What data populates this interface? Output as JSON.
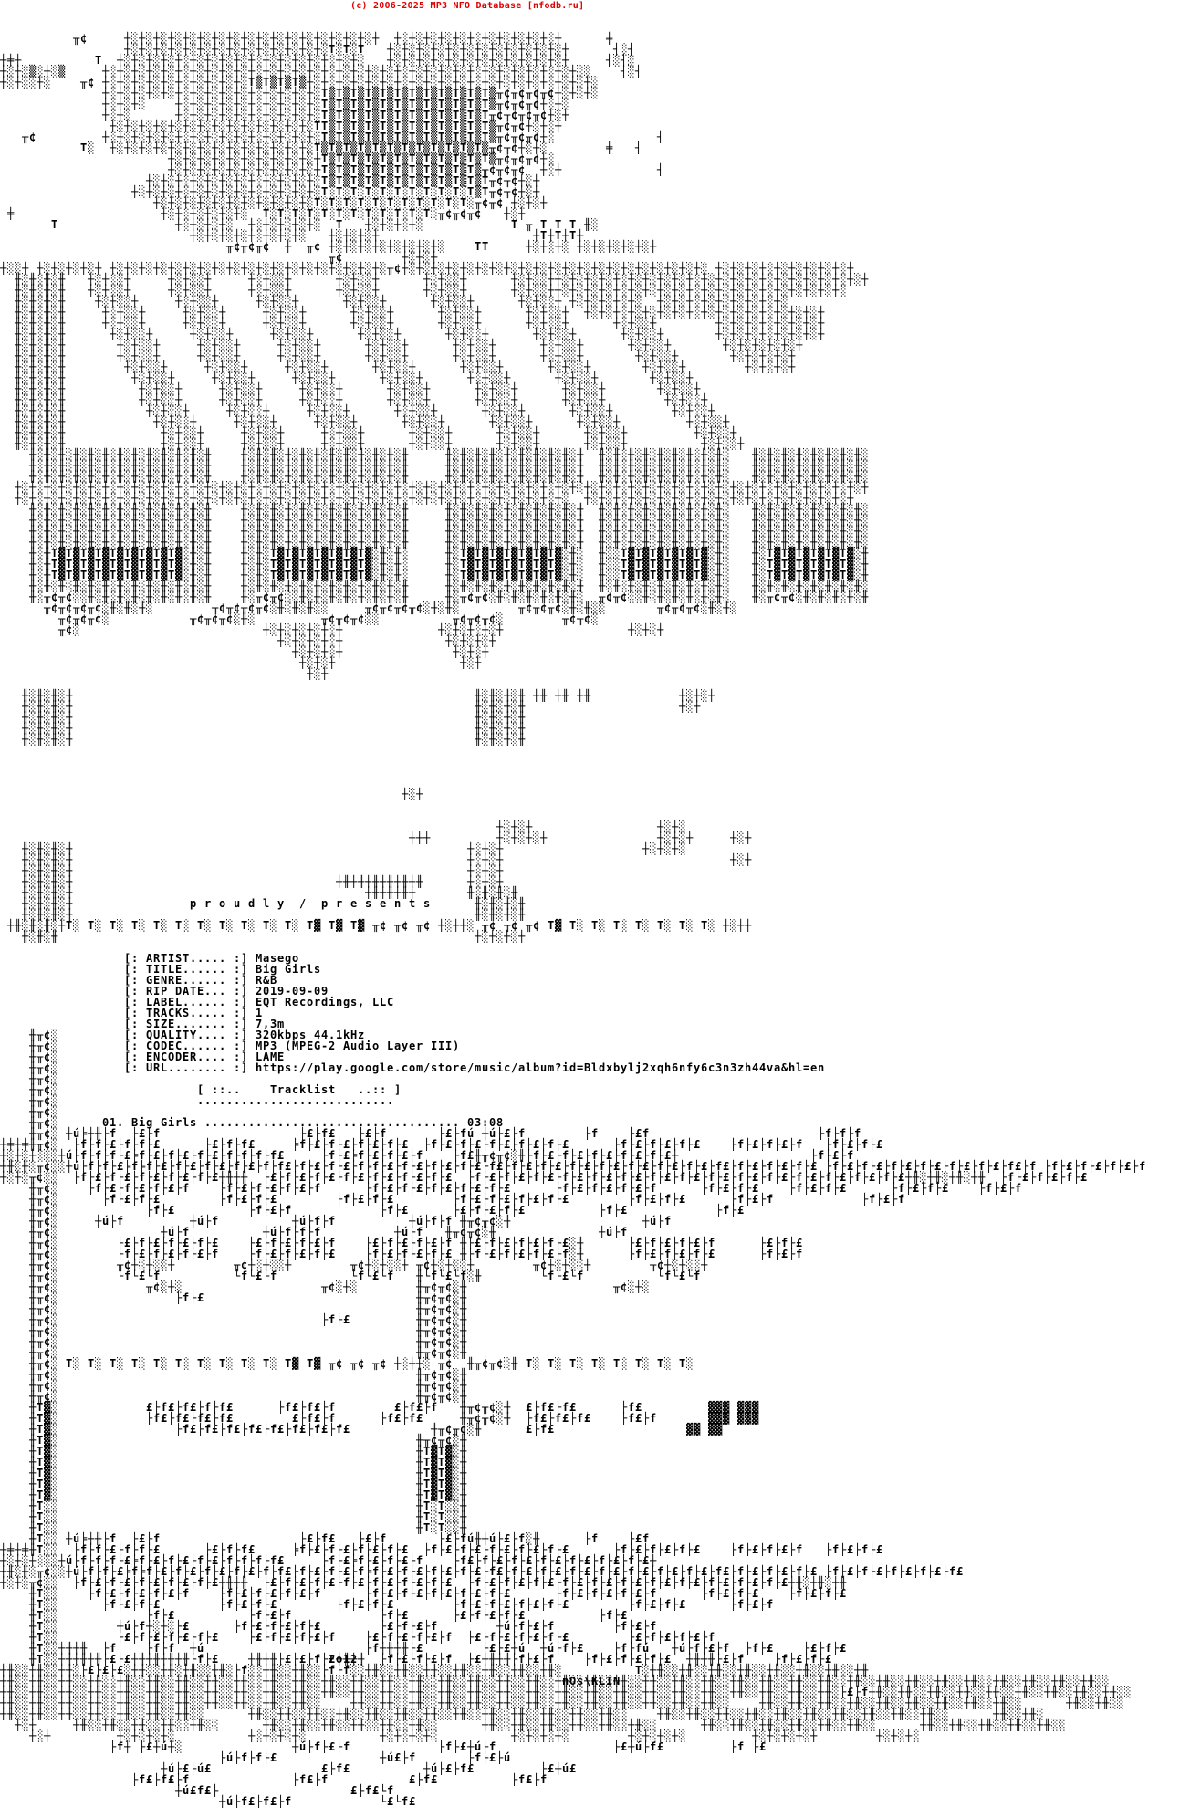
{
  "site_header": {
    "text": "(c) 2006-2025 MP3 NFO Database [nfodb.ru]",
    "color": "#e00000"
  },
  "banner": {
    "slogan": "p r o u d l y  /  p r e s e n t s"
  },
  "release": {
    "artist": "Masego",
    "title": "Big Girls",
    "genre": "R&B",
    "rip_date": "2019-09-09",
    "label": "EQT Recordings, LLC",
    "tracks": "1",
    "size": "7,3m",
    "quality": "320kbps 44.1kHz",
    "codec": "MP3 (MPEG-2 Audio Layer III)",
    "encoder": "LAME",
    "url": "https://play.google.com/store/music/album?id=Bldxbylj2xqh6nfy6c3n3zh44va&hl=en",
    "fields": [
      {
        "key": "artist",
        "label": "[: ARTIST..... :] ",
        "value": "Masego"
      },
      {
        "key": "title",
        "label": "[: TITLE...... :] ",
        "value": "Big Girls"
      },
      {
        "key": "genre",
        "label": "[: GENRE...... :] ",
        "value": "R&B"
      },
      {
        "key": "rip-date",
        "label": "[: RIP DATE... :] ",
        "value": "2019-09-09"
      },
      {
        "key": "label",
        "label": "[: LABEL...... :] ",
        "value": "EQT Recordings, LLC"
      },
      {
        "key": "tracks",
        "label": "[: TRACKS..... :] ",
        "value": "1"
      },
      {
        "key": "size",
        "label": "[: SIZE....... :] ",
        "value": "7,3m"
      },
      {
        "key": "quality",
        "label": "[: QUALITY.... :] ",
        "value": "320kbps 44.1kHz"
      },
      {
        "key": "codec",
        "label": "[: CODEC...... :] ",
        "value": "MP3 (MPEG-2 Audio Layer III)"
      },
      {
        "key": "encoder",
        "label": "[: ENCODER.... :] ",
        "value": "LAME"
      },
      {
        "key": "url",
        "label": "[: URL........ :] ",
        "value": "https://play.google.com/store/music/album?id=Bldxbylj2xqh6nfy6c3n3zh44va&hl=en"
      }
    ]
  },
  "tracklist": {
    "header": "[ ::..    Tracklist   ..:: ]",
    "divider": "...........................",
    "tracks": [
      {
        "num": "01. ",
        "title": "Big Girls ",
        "dots": "................................... ",
        "duration": "03:08"
      }
    ]
  },
  "credits": {
    "year": "2o12",
    "group": "nOs\\KLIN"
  },
  "art": {
    "lines": [
      "",
      "",
      "",
      "          ╥¢     ┼░┼░┼░┼░┼░┼░┼░┼░┼░┼░┼░┼░┼░┼░┼░┼░┼░┼  ┼░┼░┼░┼░┼░┼░┼░┼░┼░┼░┼░┼      ╪",
      "                 ┼░┼░┼░┼░┼░┼░┼░┼░┼░┼░┼░┼░┼░┼░T░T░T   ┼░┼░┼░┼░┼░┼░┼░┼░┼░┼░┼░┼░┼      ┤░┤",
      "┼╪┼          T  ┼░┼░┼░┼░┼░┼░┼░┼░┼░┼░┼░┼░┼░┼░┼░┼░┼░   ┼░┼░┼░┼░┼░┼░┼░┼░┼░┼░┼░┼░┼     ┤░┤░",
      "┼░┼░▒░┼░▒     ┼░┼░┼░┼░┼░┼░┼░┼░┼░┼░┼░┼░┼░┼░┼░┼░┼░┼░┼░┼░┼░┼░┼░┼░┼░┼░┼░┼░┼░┼░┼░┼░┼░░    ┤░┤",
      "┼░┼░░┼░    ╥¢ ┼░┼░┼░┼░┼░┼░┼░┼░┼░┼░T▒T▒T▒T▒┼░┼░┼░┼░┼░┼░┼░┼░┼░┼░┼░┼░┼░┼░┼░┼░┼░┼░┼░┼░",
      "              ┼░┼░┼░┼░┼░┼░┼░┼░┼░┼░┼░┼░┼░┼░┼░T▒T▒T▒T▒T▒T▒T▒T▒T▒T▒T▒T▒╥¢╥¢╥¢╥¢┼░┼░┼░",
      "              ┼░┼░┼░    ┼░┼░┼░┼░┼░┼░┼░┼░┼░┼░T▒T▒T▒T▒T▒T▒T▒T▒T▒T▒T▒T▒╥¢╥¢╥¢┼░┼░",
      "              ┼░┼░      ┼░┼░┼░┼░┼░┼░┼░┼░┼░┼░T▒T▒T▒T▒T▒T▒T▒T▒T▒T▒T▒T╥¢╥¢╥¢╥¢┼░┼",
      "               ┼░┼░┼░┼░┼░┼░┼░┼░┼░┼░┼░┼░┼░┼░TT▒T▒T▒T▒T▒T▒T▒T▒T▒T▒T▒T▒╥¢╥¢┼░┼░┼",
      "   ╥¢         ┼░┼░┼░┼░┼░┼░┼░┼░┼░┼░┼░┼░┼░┼░┼░T▒T▒T▒T▒T▒T▒T▒T▒T▒T▒T▒T▒╥¢╥¢╥¢┼░              ┤",
      "           T░  ┼░┼░┼░┼░┼░┼░┼░┼░┼░┼░┼░┼░┼░┼░T▒T▒T▒T▒T▒T▒T▒T▒T▒T▒T▒T▒╥¢╥¢┼░┼░        ╪   ┤",
      "                       ┼░┼░┼░┼░┼░┼░┼░┼░┼░┼░┼T▒T▒T▒T▒T▒T▒T▒T▒T▒T▒T▒T▒╥¢╥¢╥¢┼░",
      "                       ┼░┼░┼░┼░┼░┼░┼░┼░┼░┼░┼T▒T▒T▒T▒T▒T▒T▒T▒T▒T▒T▒╥¢╥¢╥¢  ┼░┼             ┤",
      "                    ┼░┼░┼░┼░┼░┼░┼░┼░┼░┼░┼░┼░T▒T▒T▒T▒T▒T▒T▒T▒T▒T▒T▒T╥¢╥¢┼░┼",
      "                  ┼░┼░┼░┼░┼░┼░┼░┼░┼░┼░┼░┼░┼░T░T░T░T░T░T░T░T░T░T░T▒T╥¢╥¢┼░┼",
      "                     ┼░┼░┼░┼░┼░┼░┼░┼░┼░┼░┼░T░T░T░T░T░T░T░T░T░T░T░╥¢╥¢ ┼░┼░┼",
      " ╪                    ┼░┼░┼░┼░┼░┼░  T░T░T░T░T░T░T░T░T░T░T░T░╥¢╥¢╥¢   ┼░┼",
      "       T                ┼░┼░┼░┼░  ┼░┼░┼░┼░┼░  T   ┼░┼░┼░┼░            T ╥ T T T ╫░",
      "                          ┼░┼░┼░┼░┼░┼░┼░┼░   ┼░┼░┼░┼                     ┼T┼T┼T┼",
      "                               ╥¢╥¢╥¢  ┼  ╥¢ ┼░┼░┼░┼░┼░┼░┼░┼░    TT     ┼░┼░┼░ ┼░┼░┼░┼░┼░┼",
      "                                             ╥¢        ┼░┼░┼",
      "┼░░┼ ┼░┼░┼░┼░┼ ┼░┼░┼░┼░┼░┼░┼░┼░┼░┼░┼░┼░┼░┼░┼░┼░┼░┼░┼░╥¢┼░┼░┼░┼░┼░┼░┼░┼░┼░┼░┼░┼░┼░┼░┼░┼░┼░┼░┼░┼░┼░ ┼░┼░┼░┼░┼░┼░┼░┼░┼░┼",
      "  ╫░╫░╫░╫   ┼░┼░░┼     ┼░┼░░┼     ┼░┼░░┼      ┼░┼░░┼      ┼░┼░░┼      ┼░┼░░┼┼░┼░┼░┼░┼░┼░┼░┼░┼░┼░┼░┼░┼░┼░┼░┼░┼░┼░┼░┼░┼░┼",
      "  ╫░╫░╫░╫   ┼░┼░░┼     ┼░┼░░┼     ┼░┼░░┼      ┼░┼░░┼      ┼░┼░░┼      ┼░┼░░┼┼░┼░┼░┼░┼░┼░┼░┼░┼░┼░┼░┼░┼░┼░┼░┼░┼░┼░┼░┼░",
      "  ╫░╫░╫░╫    ┼░┼░░┼     ┼░┼░░┼     ┼░┼░░┼      ┼░┼░░┼      ┼░┼░░┼      ┼░┼░░┼ ┼░┼░┼░┼░┼░  ┼░┼░┼░┼░┼░┼░┼░┼░┼░",
      "  ╫░╫░╫░╫     ┼░┼░░┼     ┼░┼░░┼     ┼░┼░░┼      ┼░┼░░┼      ┼░┼░░┼      ┼░┼░░┼  ┼░┼░┼░┼░┼░┼░┼░┼░┼░┼░┼░┼░┼░┼░┼░┼░┼",
      "  ╫░╫░╫░╫     ┼░┼░░┼     ┼░┼░░┼     ┼░┼░░┼      ┼░┼░░┼      ┼░┼░░┼      ┼░┼░░┼      ┼░┼░░┼        ┼░┼░┼░┼░┼░┼░┼░┼",
      "  ╫░╫░╫░╫      ┼░┼░░┼     ┼░┼░░┼     ┼░┼░░┼      ┼░┼░░┼      ┼░┼░░┼      ┼░┼░░┼      ┼░┼░░┼       ┼░┼░┼░┼░┼░┼░┼░┼",
      "  ╫░╫░╫░╫       ┼░┼░░┼     ┼░┼░░┼     ┼░┼░░┼      ┼░┼░░┼      ┼░┼░░┼      ┼░┼░░┼      ┼░┼░░┼       ┼░┼░┼░┼░┼░┼",
      "  ╫░╫░╫░╫       ┼░┼░░┼     ┼░┼░░┼     ┼░┼░░┼      ┼░┼░░┼      ┼░┼░░┼      ┼░┼░░┼       ┼░┼░░┼       ┼░┼░┼░┼░┼",
      "  ╫░╫░╫░╫        ┼░┼░░┼     ┼░┼░░┼     ┼░┼░░┼      ┼░┼░░┼      ┼░┼░░┼      ┼░┼░░┼       ┼░┼░░┼        ┼░┼░┼░┼",
      "  ╫░╫░╫░╫         ┼░┼░░┼     ┼░┼░░┼     ┼░┼░░┼      ┼░┼░░┼      ┼░┼░░┼      ┼░┼░░┼       ┼░┼░░┼",
      "  ╫░╫░╫░╫          ┼░┼░░┼     ┼░┼░░┼     ┼░┼░░┼      ┼░┼░░┼      ┼░┼░░┼      ┼░┼░░┼       ┼░┼░░┼",
      "  ╫░╫░╫░╫          ┼░┼░░┼     ┼░┼░░┼     ┼░┼░░┼      ┼░┼░░┼      ┼░┼░░┼      ┼░┼░░┼        ┼░┼░░┼",
      "  ╫░╫░╫░╫           ┼░┼░░┼     ┼░┼░░┼     ┼░┼░░┼      ┼░┼░░┼      ┼░┼░░┼      ┼░┼░░┼        ┼░┼░░┼",
      "  ╫░╫░╫░╫            ┼░┼░░┼     ┼░┼░░┼     ┼░┼░░┼      ┼░┼░░┼      ┼░┼░░┼      ┼░┼░░┼         ┼░┼░░┼",
      "  ╫░╫░╫░╫             ┼░┼░░┼     ┼░┼░░┼     ┼░┼░░┼      ┼░┼░░┼      ┼░┼░░┼      ┼░┼░░┼         ┼░┼░░┼",
      "  ╫░╫░╫░╫             ┼░┼░░┼     ┼░┼░░┼     ┼░┼░░┼      ┼░┼░░┼      ┼░┼░░┼      ┼░┼░░┼          ┼░┼░░┼",
      "    ╫░╫░╫░╫░╫░╫░╫░╫░╫░╫░╫░╫░╫    ╫░╫░╫░╫░╫░╫░╫░╫░╫░╫░╫░╫     ╫░╫░╫░╫░╫░╫░╫░╫░╫░╫  ╫░╫░╫░╫░╫░╫░╫░╫░╫░   ╫░╫░╫░╫░╫░╫░╫░╫░",
      "    ╫░╫░╫░╫░╫░╫░╫░╫░╫░╫░╫░╫░╫    ╫░╫░╫░╫░╫░╫░╫░╫░╫░╫░╫░╫     ╫░╫░╫░╫░╫░╫░╫░╫░╫░╫  ╫░╫░╫░╫░╫░╫░╫░╫░╫░   ╫░╫░╫░╫░╫░╫░╫░╫░",
      "    ╫░╫░╫░╫░╫░╫░╫░╫░╫░╫░╫░╫░╫    ╫░╫░╫░╫░╫░╫░╫░╫░╫░╫░╫░╫     ╫░╫░╫░╫░╫░╫░╫░╫░╫░╫  ╫░╫░╫░╫░╫░╫░╫░╫░╫░   ╫░╫░╫░╫░╫░╫░╫░╫░",
      "  ┼░┼░┼░┼░┼░┼░┼░┼░┼░┼░┼░┼░┼░┼░┼░┼░┼░┼░┼░┼░┼░┼░┼░┼░┼░┼░┼░┼░┼░┼░┼░┼░┼░┼░┼░┼░┼░┼░┼░┼░┼░┼░┼░┼░┼░┼░┼░┼░┼░┼░┼░┼░┼░┼░┼░┼░┼░┼░┼",
      "  ┼░┼░┼░┼░┼░┼░┼░┼░┼░┼░┼░┼░┼░┼░┼░┼░┼░┼░┼░┼░┼░┼░┼░┼░┼░┼░┼░┼░┼░┼░┼░┼░┼░┼░┼░┼░┼░┼░  ┼░┼░┼░┼░┼░┼░┼░┼░┼░┼░┼░┼░┼░┼░┼░┼░┼░┼░┼",
      "    ╫░╫░╫░╫░╫░╫░╫░╫░╫░╫░╫░╫░╫    ╫░╫░╫░╫░╫░╫░╫░╫░╫░╫░╫░╫     ╫░╫░╫░╫░╫░╫░╫░╫░╫░╫  ╫░╫░╫░╫░╫░╫░╫░╫░╫░   ╫░╫░╫░╫░╫░╫░╫░╫░",
      "    ╫░╫░╫░╫░╫░╫░╫░╫░╫░╫░╫░╫░╫    ╫░╫░╫░╫░╫░╫░╫░╫░╫░╫░╫░╫     ╫░╫░╫░╫░╫░╫░╫░╫░╫░╫  ╫░╫░╫░╫░╫░╫░╫░╫░╫░   ╫░╫░╫░╫░╫░╫░╫░╫░",
      "    ╫░╫░╫░╫░╫░╫░╫░╫░╫░╫░╫░╫░╫    ╫░╫░╫░╫░╫░╫░╫░╫░╫░╫░╫░╫     ╫░╫░╫░╫░╫░╫░╫░╫░╫░╫  ╫░╫░╫░╫░╫░╫░╫░╫░╫░   ╫░╫░╫░╫░╫░╫░╫░╫░",
      "    ╫░╫░╫░╫░╫░╫░╫░╫░╫░╫░╫░╫░╫    ╫░╫░╫░╫░╫░╫░╫░╫░╫░╫░╫░╫     ╫░╫░╫░╫░╫░╫░╫░╫░╫░╫  ╫░╫░╫░╫░╫░╫░╫░╫░╫░   ╫░╫░╫░╫░╫░╫░╫░╫░",
      "    ╫░╫T▓T▓T▓T▓T▓T▓T▓T▓T▓░╫░╫    ╫░╫░T▓T▓T▓T▓T▓T▓T▓░╫░╫░     ╫░T▓T▓T▓T▓T▓T▓T▓░╫░  ╫░░T▓T▓T▓T▓T▓T▓░╫░   ╫░T▓T▓T▓T▓T▓T▓░╫",
      "    ╫░╫T▓T▓T▓T▓T▓T▓T▓T▓T▓░╫░╫    ╫░╫░T▓T▓T▓T▓T▓T▓T▓░╫░╫░     ╫░T▓T▓T▓T▓T▓T▓T▓░╫░  ╫░░T▓T▓T▓T▓T▓T▓░╫░   ╫░T▓T▓T▓T▓T▓T▓░╫",
      "    ╫░╫T▓T▓T▓T▓T▓T▓T▓T▓T▓░╫░╫    ╫░╫░T▓T▓T▓T▓T▓T▓T▓░╫░╫░     ╫░T▓T▓T▓T▓T▓T▓T▓░╫░  ╫░░T▓T▓T▓T▓T▓T▓░╫░   ╫░T▓T▓T▓T▓T▓T▓░╫",
      "    ╫░╫░╫░╫░╫░╫░╫░╫░╫░╫░╫░╫░╫    ╫░╫░╫░╫░╫░╫░╫░╫░╫░╫░╫░╫     ╫░╫░╫░╫░╫░╫░╫░╫░╫░╫  ╫░╫░╫░╫░╫░╫░╫░╫░╫░   ╫░╫░╫░╫░╫░╫░╫░╫░",
      "    ╫░╥¢╥¢░░╫░╫░╫░╫░╫░╫░╫░╫░╫    ╫░╥¢╥¢░░╫░╫░╫░╫░╫░╫░╫░╫     ╫░╥¢╥¢░╫░╫░╫░╫░╫░╫░  ╥¢╥¢░░╫░╫░╫░╫░╫░╫░   ╫░╥¢╥¢░╫░╫░╫░╫░╫",
      "      ╥¢╥¢╥¢╥¢░╫░╫░╫░        ╥¢╥¢╥¢╥¢░╫░╫░╫░░     ╥¢╥¢╥¢╥¢░╫░╫░        ╥¢╥¢╥¢░╫░╫░░       ╥¢╥¢╥¢░╫░╫░",
      "        ╥¢╥¢╥¢░           ╥¢╥¢╥¢░╫░         ╥¢╥¢╥¢░░          ╥¢╥¢╥¢░        ╥¢╥¢░",
      "        ╥¢░                         ┼░┼░┼░┼░┼░┼             ┼░┼░┼░┼░┼                 ┼░┼░┼",
      "                                      ┼░┼░┼░┼░┼              ┼░┼░┼░┼",
      "                                        ┼░┼░┼░┼               ┼░┼░┼",
      "                                         ┼░┼░┼                 ┼░┼",
      "                                          ┼░┼",
      "",
      "   ╫░╫░╫░╫                                                       ╫░╫░╫░╫ ┼╫ ┼╫ ┼╫            ┼░┼░┼",
      "   ╫░╫░╫░╫                                                       ╫░╫░╫░╫                     ┼░┼",
      "   ╫░╫░╫░╫                                                       ╫░╫░╫░╫",
      "   ╫░╫░╫░╫                                                       ╫░╫░╫░╫",
      "   ╫░╫░╫░╫                                                       ╫░╫░╫░╫",
      "",
      "",
      "",
      "",
      "                                                       ┼░┼",
      "",
      "",
      "                                                                    ┼░┼░┼                 ┼░┼░",
      "                                                        ┼┼┼         ┼░┼░┼░┼               ┼░┼░┼     ┼░┼",
      "   ╫░╫░╫░╫                                                      ┼░┼░┼                   ┼░┼░┼░",
      "   ╫░╫░╫░╫                                                      ┼░┼░┼                               ┼░┼",
      "   ╫░╫░╫░╫                                                      ┼░┼░┼",
      "   ╫░╫░╫░╫                                    ┼╫┼╫┼╫┼╫┼╫┼╫      ┼░┼░┼",
      "   ╫░╫░╫░╫                                        ┼╫┼╫┼╫┼       ╫░╫░╫░╫",
      "   ╫░╫░╫░╫                                                       ╫░╫░╫░╫",
      "   ╫░╫░╫░╫                                                       ╫░╫░╫░╫",
      " ┼╫░╫░╫░┼T░ T░ T░ T░ T░ T░ T░ T░ T░ T░ T░ T▓ T▓ T▓ ╥¢ ╥¢ ╥¢ ┼░┼┼░ ╥¢ ╥¢ ╥¢ T▓ T░ T░ T░ T░ T░ T░ T░ ┼░┼┼",
      "   ╫░╫░╫                                                         ┼░┼░┼░┼",
      "",
      "",
      "",
      "",
      "",
      "",
      "",
      "",
      "    ╫╥¢░",
      "    ╫╥¢░",
      "    ╫╥¢░",
      "    ╫╥¢░",
      "    ╫╥¢░",
      "    ╫╥¢░",
      "    ╫╥¢░",
      "    ╫╥¢░",
      "    ╫╥¢░",
      "    ╫╥¢░ ┼ú╞┼╫├f  ├£├f                   ├£├f£   ├£├f       ├£├fú ┼ú├£├f        ├f    ├£f                       ├f├f├f",
      "┼╪┼╪╫╥¢░  ├f├f├£├f├f├£      ├£├f├f£     ╞f├£├f├£├f├£├f├£  ├f├£├f├£├f├£├f├£├f├£      ├f├£├f├£├f├£    ├f├£├f├£├f   ├f├£├f├£",
      "┼░┼░┼░░░┼ú├f├f├f├£╞f├£├f├£├f├£├f├f├f├f£     ├f├£╞f├£├f├£├f    ├f£╫╥¢╥¢░╫├f├£├f├£├f├£├f├£├f├£┼                  ├f├£├f",
      "┼╫░╫░╥¢░░┼ú├f├f├£╞f╞f├£├f├£├f├£├f├£├f├f£├f├£├f├£├f╞f├£├f├£├f├£├f├£├f£├f├£├f├£├f├£├f├£├f├£├f├£├f├£├f£├f├£├f├£├f├£ ├f├£├f├£├f├£├f├£├f├£├f├£├f£├f ├f├£├f├£├f├£├f",
      "┼░┼░╥¢░░  ├f├£├f├£├f├£├f├£├f├£┼╫┼╫  ├£├f├£├f├£├f├£├f├£├f├£├f├£  ├f├£├f├£├f├£├f├£├f├£├f├£├f├£├f├£├f├£├f├£├f├£├f├£├f├£├f├£├f├£┼╫░┼╫░┼╫░┼╫  ├f├£├f├£├f├£",
      "    ╫╥¢░    ├f├£├f├£├f├£├f    ├f├£├f├£├f├£├f      ├f├£├f├£├f├£├f├£├f├£      ├f├£├f├£├f├£├f      ├f├£├f├£    ├f├£├f├£      ├f├£├f├£    ├f├£├f",
      "    ╫╥¢░      ├f├£├f├£        ├f├£├f├£        ├f├£├f├£        ├f├£├f├£├f├£├f├£        ├f├£├f├£      ├f├£├f            ├f├£├f",
      "    ╫╥¢░            ├f├£          ├f├£├f            ├f├£      ├£├f├£├f├£          ├f├£            ├f├£",
      "    ╫╥¢░     ┼ú├f         ┼ú├f          ┼ú├f├f          ┼ú├f├f ╫╥¢╥¢░╫                  ┼ú├f",
      "    ╫╥¢░              ┼ú├f          ┼ú├f├f├f          ┼ú├f   ╫╥¢╥¢░╫              ┼ú├f",
      "    ╫╥¢░        ├£├f├£├f├£├f├£    ├£├f├£├f├£├f    ├£├f├£├f├£├f ╫├£├f├£├f├£├f├£░╫      ├£├f├£├f├£├f      ├£├f├£",
      "    ╫╥¢░        ├f├£├f├£├f├£├f    ├f├£├f├£├f├£    ├f├£├f├£├f├£ ╫├f├£├f├£├f├£├f░╫      ├f├£├f├£├f├£      ├f├£├f",
      "    ╫╥¢░        ╥¢┼░┼░░┼        ╥¢┼░┼░░┼        ╥¢┼░┼░░┼ ╥¢┼░┼░░┼        ╥¢┼░┼░░┼        ╥¢┼░┼░░┼",
      "    ╫╥¢░        └f└£└f          └f└£└f          └f└£└f   ╫└f└£└f░╫        └f└£└f          └f└£└f",
      "    ╫╥¢░            ╥¢░┼░                   ╥¢░┼░        ╫╥¢╥¢░╫                    ╥¢░┼░",
      "    ╫╥¢░                ├f├£                             ╫╥¢╥¢░╫",
      "    ╫╥¢░                                                 ╫╥¢╥¢░╫",
      "    ╫╥¢░                                    ├f├£         ╫╥¢╥¢░╫",
      "    ╫╥¢░                                                 ╫╥¢╥¢░╫",
      "    ╫╥¢░                                                 ╫╥¢╥¢░╫",
      "    ╫╥¢░                                                 ╫╥¢╥¢░╫",
      "    ╫╥¢░ T░ T░ T░ T░ T░ T░ T░ T░ T░ T░ T▓ T▓ ╥¢ ╥¢ ╥¢ ┼░┼┼░ ╥¢  ╫╥¢╥¢░╫ T░ T░ T░ T░ T░ T░ T░ T░",
      "    ╫╥¢░                                                 ╫╥¢╥¢░╫",
      "    ╫╥¢░                                                 ╫╥¢╥¢░╫",
      "    ╫╥¢░                                                 ╫╥¢╥¢░╫",
      "    ╫T▓░            £├f£├f£├f├f£      ├f£├f£├f        £├f£├f   ╫╥¢╥¢░╫  £├f£├f£      ├f£         ▓▓▓ ▓▓▓",
      "    ╫T▓░            ├f£├f£├f£├f£        £├f£├f      ├f£├f£     ╫╥¢╥¢░╫  ├f£├f£├f£    ├f£├f       ▓▓▓ ▓▓▓",
      "    ╫T▓░                ├f£├f£├f£├f£├f£├f£├f£├f£           ╫╥¢╥¢░╫      £├f£                  ▓▓ ▓▓",
      "    ╫T▓░                                                 ╫╥¢╥¢░╫",
      "    ╫T▓░                                                 ╫T▓T▓░╫",
      "    ╫T▓░                                                 ╫T▓T▓░╫",
      "    ╫T▓░                                                 ╫T▓T▓░╫",
      "    ╫T▓░                                                 ╫T▓T▓░╫",
      "    ╫T▓░                                                 ╫T▓T▓░╫",
      "    ╫T░░                                                 ╫T░T░░╫",
      "    ╫T░░                                                 ╫T░T░░╫",
      "    ╫T░░                                                 ╫T░T░░╫",
      "    ╫T░░ ┼ú╞┼╫├f  ├£├f                   ├£├f£   ├£├f       ├£├fú╫┼ú├£├f░╫      ├f    ├£f",
      "┼╪┼╪╫T░░  ├f├f├£├f├f├£      ├£├f├f£     ╞f├£├f├£├f├£├f├£  ├f├£├f├£├f├£├f├£├f├£      ├f├£├f├£├f├£    ├f├£├f├£├f   ├f├£├f├£",
      "┼░┼░┼░░░┼ú├f├f├f├£╞f├£├f├£├f├£├f├f├f├f£     ├f├£╞f├£├f├£├f    ├f£├f├£├f├£├f├£├f├£├f├£├f├£┼",
      "┼╫░╫░╥¢░░┼ú├f├f├£╞f╞f├£├f├£├f├£├f├£├f├f£├f├£├f├£├f╞f├£├f├£├f├£├f├£├f£├f├£├f├£├f├£├f├£├f├£├f├£├f├£├f£├f├£├f├£├f├£ ├f├£├f├£├f├£├f├£├f£",
      "┼░┼░╥¢░░  ├f├£├f├£├f├£├f├£├f├£┼╫┼╫  ├£├f├£├f├£├f├£├f├£├f├£├f├£  ├f├£├f├£├f├£├f├£├f├£├f├£├f├£├f├£├f├£├f├£├f├£┼╫░┼╫░┼╫",
      "    ╫T░░    ├f├£├f├£├f├£├f    ├f├£├f├£├f├£├f      ├f├£├f├£├f├£├f├£├f├£      ├f├£├f├£├f├£├f      ├f├£├f├£    ├f├£├f├£",
      "    ╫T░░      ├f├£├f├£        ├f├£├f├£        ├f├£├f├£        ├f├£├f├£├f├£├f├£        ├f├£├f├£      ├f├£├f",
      "    ╫T░░            ├f├£          ├f├£├f            ├f├£      ├£├f├£├f├£          ├f├£",
      "    ╫T░░        ┼ú├f┼░┼░├£      ├f├£├f├£├f├£        ├£├f├£├f        ┼ú├f├£├f        ├f├£├f",
      "    ╫T░░        ├£├f├£├f├£├f├£    ├£├f├£├f├£├f    ├£├f├£├f├£├f  ├£├f├£├f├£├f├£        ├£├f├£├f├£├f",
      "    ╫T░░┼╫┼╫  ├f    ├f├f  ┼ú                      ├f┼╫┼╫├£        ├£├£┼ú  ┼ú├f├£    ├f├fú   ┼ú├f├£├f  ├f├£    ├£├f├£",
      "    ╫T░░┼╫┼╫┼╫├£├£┼╫┼╫┼╫┼╫├f├£    ┼╫┼╫├£├£├f├£┼╫┼╫  ├f├£├f├£├f  ├£┼╫┼╫├f├£├f    ├f├£├f├£├f├£  ┼╫┼╫├£├f    ├f├£├f├£",
      "┼╫░░┼╫░░┼╫░├£├£├£░┼╫░░┼╫░┼╫░░┼╫░├f░░┼╫░░┼╫░░├f├f░░┼╫░░┼╫░░┼╫░░┼╫░░┼╫░░┼╫░░┼╫░          T░┼╫░░┼╫░░┼╫░░┼╫░░┼╫░░┼╫░░┼╫░░┼╫",
      "┼╫░░┼╫░░┼╫░░┼╫░░┼╫░░┼╫░░┼╫░░┼╫░░┼╫░░┼╫░░┼╫░░┼╫░░┼╫░░┼╫░░┼╫░░┼╫░░┼╫░░┼╫░░┼╫░░┼╫░░┼╫░░┼╫░░┼╫░░┼╫░░┼╫░░┼╫░░┼╫░░┼╫░░┼╫░░┼╫░░┼╫░░┼╫░░┼╫░░┼╫░░┼╫░░┼╫░░┼╫░░┼╫░░",
      "┼╫░░┼╫░░┼╫░░┼╫░░┼╫░░┼╫░░┼╫░░┼╫░░┼╫░░┼╫░░┼╫░░┼╫░░┼╫░░┼╫░░┼╫░░┼╫░░┼╫░░┼╫░░┼╫░░┼╫░░┼╫░░┼╫░░┼╫░░┼╫░░┼╫░░┼╫░░┼╫░░┼╫░░┼╫░├£├f┼╫░░┼╫░░┼╫░░┼╫░░┼╫░░┼╫░░┼╫░░┼╫░░┼╫░░",
      "┼╫░░┼╫░░┼╫░░┼╫░░┼╫░░┼╫░░┼╫░░┼╫░░┼╫░░┼╫░░┼╫░░    ┼╫░░┼╫░░┼╫░░┼╫░░┼╫░░┼╫░░┼╫░░┼╫░░┼╫░░┼╫░░┼╫░░┼╫░░┼╫░░    ┼╫░░┼╫░░┼╫░░┼╫░░┼╫░░┼╫░░┼╫░░┼╫░░┼╫░░      ┼╫░░┼╫░░",
      "┼╫░░┼╫░░┼╫░░┼╫░░┼╫░░┼╫░░┼╫░░      ┼╫░░┼╫░░┼╫░░┼╫░░┼╫░░┼╫░░┼╫░░┼╫░░┼╫░░┼╫░░┼╫░░┼╫░░┼╫░░    ┼╫░░┼╫░░┼╫░░┼╫░░┼╫░░┼╫░░┼╫░░┼╫░░┼╫░░┼╫░░      ┼╫░░┼╫░",
      "  ┼░┼     ┼╫░░┼╫░░┼╫░░┼╫░░┼╫░░      ┼╫░░┼╫░░┼╫░░┼╫░░┼╫░░┼╫░░      ┼╫░░┼╫░░┼╫░░┼╫░░┼╫░░┼╫░░      ┼╫░░┼╫░░┼╫░░┼╫░░┼╫░░┼╫░░      ┼╫░░┼╫░░┼╫░░┼╫░░┼╫░░",
      "    ┼░┼         ┼░┼░┼░┼░          ┼░┼░┼░┼░          ┼░┼░┼░┼░          ┼░┼░┼░┼░        ┼░┼░┼░┼░         ┼░┼░┼░┼░┼        ┼░┼░┼░",
      "               ├f┼ ├£┼ú┼░               ┼ú├f├£├f            ├f├£┼ú├f                ├£┼ú├f£         ├f ├£",
      "                              ├ú├f├f├£              ┼ú£├f       ├f├£├ú",
      "                      ┼ú├£├ú£               £├f£          ┼ú├£├f£         ├£┼ú£",
      "                  ├f£├f£├f              ├f£├f           £├f£          ├f£├f",
      "                        ┼ú£f£├                  £├f£└f",
      "                              ┼ú├f£├f£├f            └£└f£"
    ]
  }
}
